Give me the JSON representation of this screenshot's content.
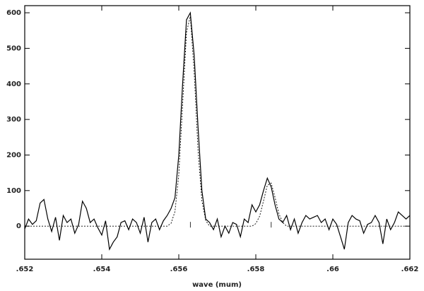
{
  "chart_data": {
    "type": "line",
    "xlabel": "wave (mum)",
    "xlim": [
      0.652,
      0.662
    ],
    "ylim": [
      -93,
      620
    ],
    "xticks": [
      {
        "value": 0.652,
        "label": ".652"
      },
      {
        "value": 0.654,
        "label": ".654"
      },
      {
        "value": 0.656,
        "label": ".656"
      },
      {
        "value": 0.658,
        "label": ".658"
      },
      {
        "value": 0.66,
        "label": ".66"
      },
      {
        "value": 0.662,
        "label": ".662"
      }
    ],
    "yticks": [
      0,
      100,
      200,
      300,
      400,
      500,
      600
    ],
    "x": [
      0.652,
      0.6521,
      0.6522,
      0.6523,
      0.6524,
      0.6525,
      0.6526,
      0.6527,
      0.6528,
      0.6529,
      0.653,
      0.6531,
      0.6532,
      0.6533,
      0.6534,
      0.6535,
      0.6536,
      0.6537,
      0.6538,
      0.6539,
      0.654,
      0.6541,
      0.6542,
      0.6543,
      0.6544,
      0.6545,
      0.6546,
      0.6547,
      0.6548,
      0.6549,
      0.655,
      0.6551,
      0.6552,
      0.6553,
      0.6554,
      0.6555,
      0.6556,
      0.6557,
      0.6558,
      0.6559,
      0.656,
      0.6561,
      0.6562,
      0.6563,
      0.6564,
      0.6565,
      0.6566,
      0.6567,
      0.6568,
      0.6569,
      0.657,
      0.6571,
      0.6572,
      0.6573,
      0.6574,
      0.6575,
      0.6576,
      0.6577,
      0.6578,
      0.6579,
      0.658,
      0.6581,
      0.6582,
      0.6583,
      0.6584,
      0.6585,
      0.6586,
      0.6587,
      0.6588,
      0.6589,
      0.659,
      0.6591,
      0.6592,
      0.6593,
      0.6594,
      0.6595,
      0.6596,
      0.6597,
      0.6598,
      0.6599,
      0.66,
      0.6601,
      0.6602,
      0.6603,
      0.6604,
      0.6605,
      0.6606,
      0.6607,
      0.6608,
      0.6609,
      0.661,
      0.6611,
      0.6612,
      0.6613,
      0.6614,
      0.6615,
      0.6616,
      0.6617,
      0.6618,
      0.6619,
      0.662
    ],
    "series": [
      {
        "color": "#000000",
        "style": "solid",
        "values": [
          -8,
          20,
          5,
          15,
          65,
          75,
          20,
          -15,
          25,
          -40,
          30,
          10,
          20,
          -20,
          5,
          70,
          50,
          10,
          20,
          -5,
          -25,
          15,
          -65,
          -45,
          -30,
          10,
          15,
          -10,
          20,
          10,
          -20,
          25,
          -45,
          10,
          20,
          -10,
          15,
          30,
          50,
          80,
          200,
          400,
          580,
          600,
          480,
          280,
          100,
          20,
          10,
          -10,
          20,
          -30,
          0,
          -20,
          10,
          5,
          -30,
          20,
          10,
          60,
          40,
          60,
          100,
          135,
          110,
          60,
          20,
          10,
          30,
          -10,
          20,
          -20,
          10,
          30,
          20,
          25,
          30,
          10,
          20,
          -10,
          20,
          5,
          -30,
          -65,
          10,
          30,
          20,
          15,
          -20,
          5,
          10,
          30,
          10,
          -50,
          20,
          -10,
          10,
          40,
          30,
          20,
          30
        ]
      },
      {
        "color": "#000000",
        "style": "dashed",
        "values": [
          0,
          0,
          0,
          0,
          0,
          0,
          0,
          0,
          0,
          0,
          0,
          0,
          0,
          0,
          0,
          0,
          0,
          0,
          0,
          0,
          0,
          0,
          0,
          0,
          0,
          0,
          0,
          0,
          0,
          0,
          0,
          0,
          0,
          0,
          0,
          0,
          0,
          0,
          8,
          41,
          145,
          341,
          545,
          590,
          432,
          214,
          71,
          16,
          0,
          0,
          0,
          0,
          0,
          0,
          0,
          0,
          0,
          0,
          0,
          0,
          7,
          28,
          71,
          115,
          121,
          81,
          35,
          10,
          0,
          0,
          0,
          0,
          0,
          0,
          0,
          0,
          0,
          0,
          0,
          0,
          0,
          0,
          0,
          0,
          0,
          0,
          0,
          0,
          0,
          0,
          0,
          0,
          0,
          0,
          0,
          0,
          0,
          0,
          0,
          0,
          0
        ]
      }
    ],
    "markers_x": [
      0.6563,
      0.6584
    ]
  }
}
